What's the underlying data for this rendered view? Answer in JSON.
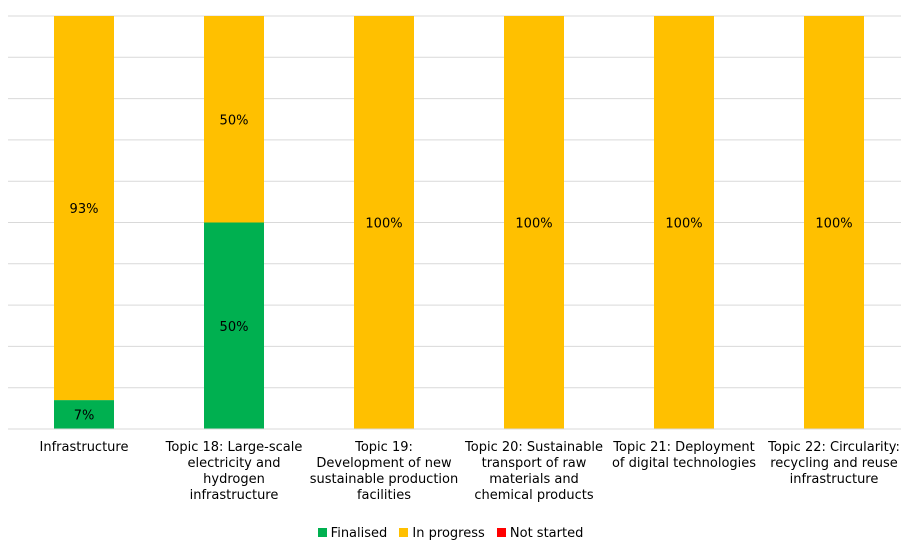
{
  "chart_data": {
    "type": "bar",
    "stacked": true,
    "percent": true,
    "categories": [
      "Infrastructure",
      "Topic 18: Large-scale electricity and hydrogen infrastructure",
      "Topic 19: Development of new sustainable production facilities",
      "Topic 20: Sustainable transport of raw materials and chemical products",
      "Topic 21: Deployment of digital technologies",
      "Topic 22: Circularity: recycling and reuse infrastructure"
    ],
    "category_lines": [
      [
        "Infrastructure"
      ],
      [
        "Topic 18: Large-scale",
        "electricity and",
        "hydrogen",
        "infrastructure"
      ],
      [
        "Topic 19:",
        "Development of new",
        "sustainable production",
        "facilities"
      ],
      [
        "Topic 20: Sustainable",
        "transport of raw",
        "materials and",
        "chemical products"
      ],
      [
        "Topic 21: Deployment",
        "of digital technologies"
      ],
      [
        "Topic 22: Circularity:",
        "recycling and reuse",
        "infrastructure"
      ]
    ],
    "series": [
      {
        "name": "Finalised",
        "color": "#00B050",
        "values": [
          7,
          50,
          0,
          0,
          0,
          0
        ],
        "labels": [
          "7%",
          "50%",
          "",
          "",
          "",
          ""
        ]
      },
      {
        "name": "In progress",
        "color": "#FFC000",
        "values": [
          93,
          50,
          100,
          100,
          100,
          100
        ],
        "labels": [
          "93%",
          "50%",
          "100%",
          "100%",
          "100%",
          "100%"
        ]
      },
      {
        "name": "Not started",
        "color": "#FF0000",
        "values": [
          0,
          0,
          0,
          0,
          0,
          0
        ],
        "labels": [
          "",
          "",
          "",
          "",
          "",
          ""
        ]
      }
    ],
    "ylim": [
      0,
      100
    ],
    "grid": true,
    "legend_position": "bottom"
  }
}
